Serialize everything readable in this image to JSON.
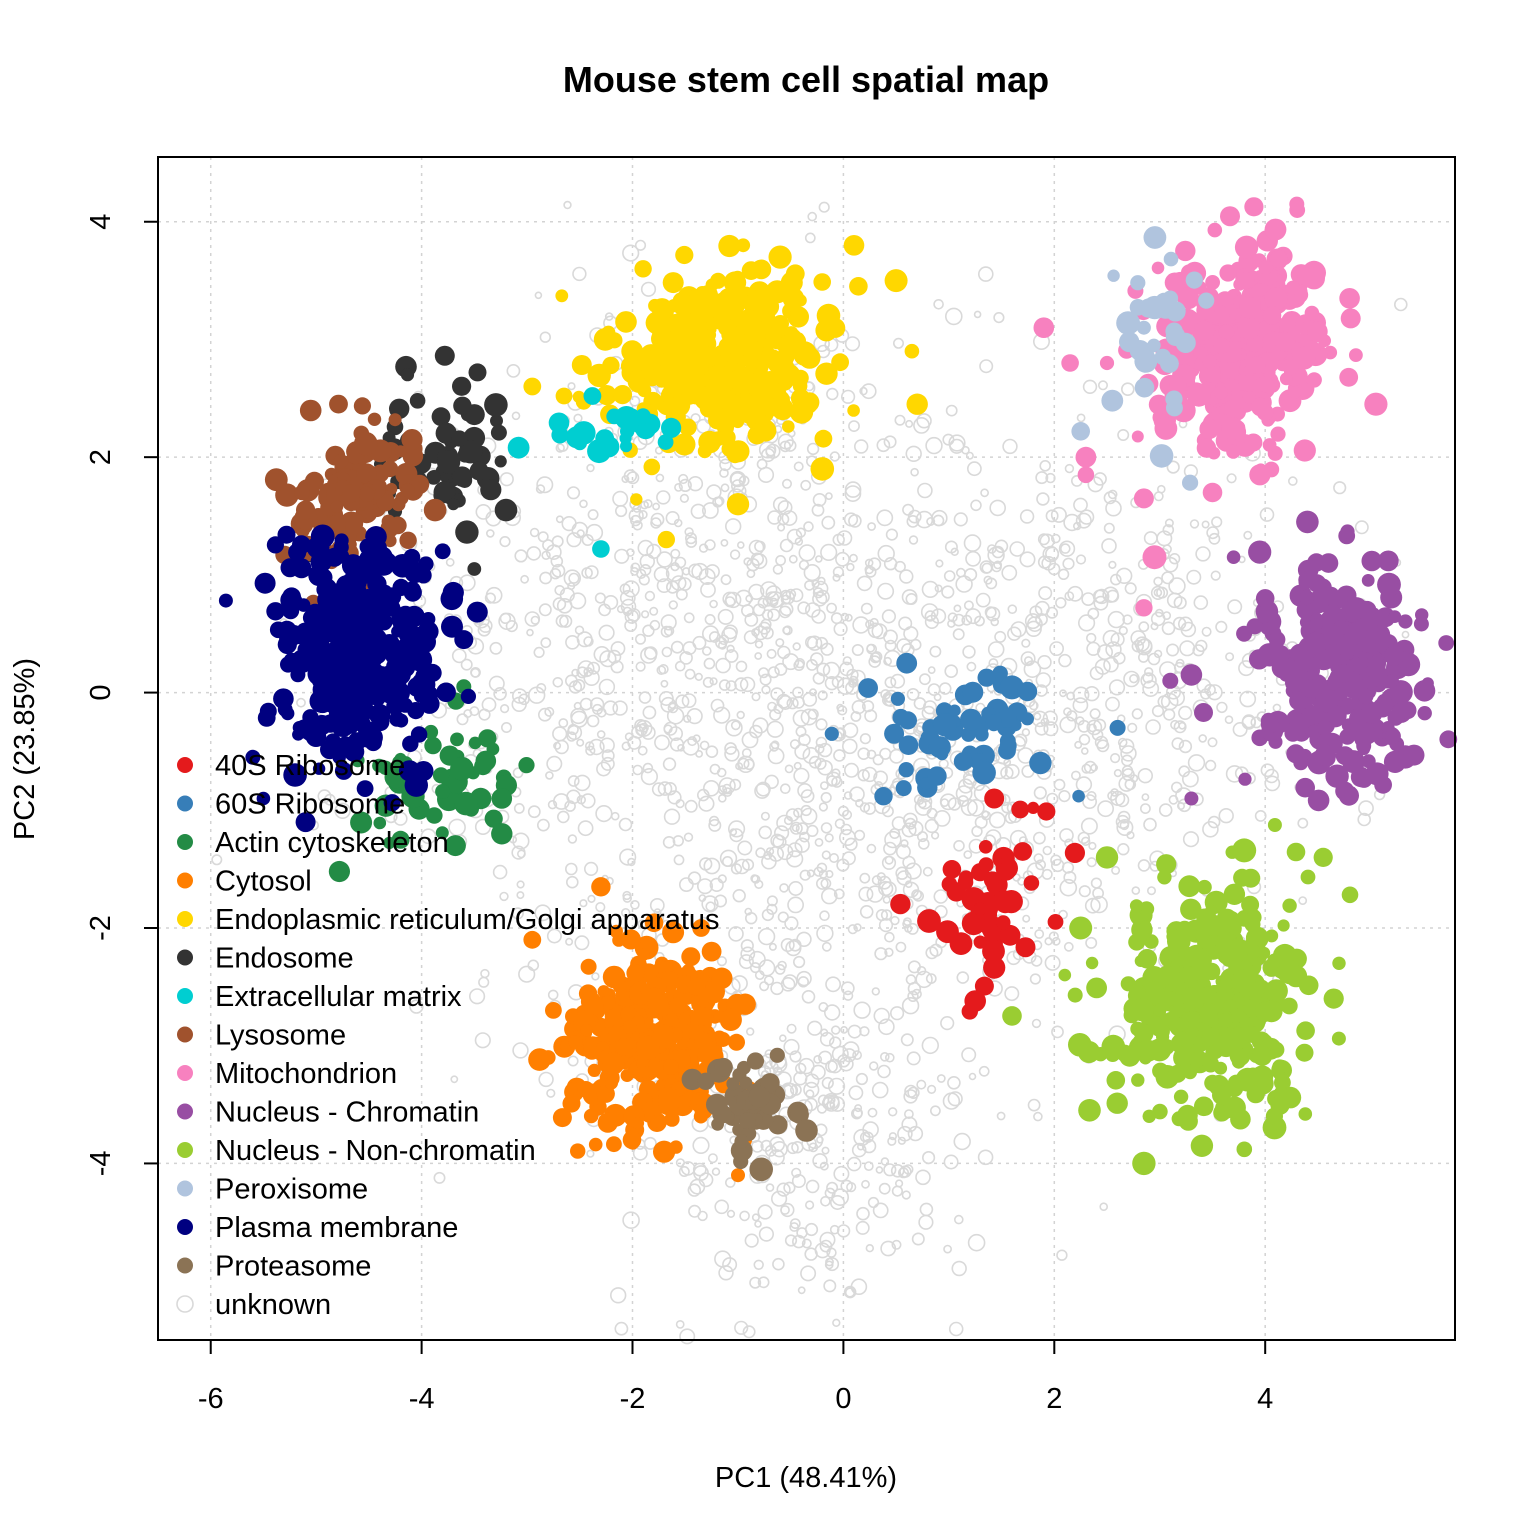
{
  "chart_data": {
    "type": "scatter",
    "title": "Mouse stem cell spatial map",
    "xlabel": "PC1 (48.41%)",
    "ylabel": "PC2 (23.85%)",
    "xlim": [
      -6.5,
      5.8
    ],
    "ylim": [
      -5.5,
      4.55
    ],
    "x_ticks": [
      -6,
      -4,
      -2,
      0,
      2,
      4
    ],
    "x_tick_labels": [
      "-6",
      "-4",
      "-2",
      "0",
      "2",
      "4"
    ],
    "y_ticks": [
      -4,
      -2,
      0,
      2,
      4
    ],
    "y_tick_labels": [
      "-4",
      "-2",
      "0",
      "2",
      "4"
    ],
    "grid": true,
    "legend_position": "bottom-left",
    "series": [
      {
        "name": "unknown",
        "color": "#d9d9d9",
        "style": "open",
        "clusters": [
          {
            "cx": -0.4,
            "cy": -0.8,
            "sx": 1.6,
            "sy": 1.5,
            "n": 700
          },
          {
            "cx": 1.6,
            "cy": -0.3,
            "sx": 1.3,
            "sy": 1.2,
            "n": 380
          },
          {
            "cx": -2.4,
            "cy": 0.6,
            "sx": 1.1,
            "sy": 1.3,
            "n": 300
          },
          {
            "cx": -0.3,
            "cy": -3.8,
            "sx": 0.7,
            "sy": 0.8,
            "n": 260
          },
          {
            "cx": 3.0,
            "cy": 0.2,
            "sx": 0.9,
            "sy": 1.1,
            "n": 200
          },
          {
            "cx": -0.6,
            "cy": 1.6,
            "sx": 0.9,
            "sy": 0.8,
            "n": 160
          }
        ]
      },
      {
        "name": "40S Ribosome",
        "color": "#e41a1c",
        "clusters": [
          {
            "cx": 1.4,
            "cy": -1.75,
            "sx": 0.28,
            "sy": 0.35,
            "n": 45
          }
        ],
        "points": [
          [
            1.43,
            -0.9
          ],
          [
            1.8,
            -0.98
          ],
          [
            1.25,
            -2.62
          ],
          [
            1.7,
            -1.35
          ]
        ]
      },
      {
        "name": "60S Ribosome",
        "color": "#377eb8",
        "clusters": [
          {
            "cx": 1.15,
            "cy": -0.35,
            "sx": 0.4,
            "sy": 0.28,
            "n": 55
          }
        ],
        "points": [
          [
            0.6,
            0.25
          ],
          [
            2.23,
            -0.88
          ],
          [
            -0.11,
            -0.35
          ],
          [
            2.6,
            -0.3
          ],
          [
            0.38,
            -0.88
          ]
        ]
      },
      {
        "name": "Actin cytoskeleton",
        "color": "#238b45",
        "clusters": [
          {
            "cx": -3.9,
            "cy": -0.8,
            "sx": 0.5,
            "sy": 0.35,
            "n": 45
          }
        ],
        "points": [
          [
            -3.68,
            -1.3
          ],
          [
            -3.24,
            -1.2
          ],
          [
            -4.78,
            -1.52
          ],
          [
            -3.6,
            0.05
          ],
          [
            -3.24,
            -0.9
          ]
        ]
      },
      {
        "name": "Cytosol",
        "color": "#ff7f00",
        "clusters": [
          {
            "cx": -1.8,
            "cy": -2.95,
            "sx": 0.38,
            "sy": 0.35,
            "n": 330
          }
        ],
        "points": [
          [
            -2.95,
            -2.1
          ],
          [
            -2.75,
            -2.7
          ],
          [
            -2.3,
            -1.65
          ],
          [
            -1.35,
            -2.0
          ],
          [
            -1.0,
            -4.1
          ],
          [
            -1.7,
            -3.9
          ],
          [
            -2.8,
            -3.1
          ],
          [
            -1.25,
            -2.2
          ]
        ]
      },
      {
        "name": "Endoplasmic reticulum/Golgi apparatus",
        "color": "#ffd700",
        "clusters": [
          {
            "cx": -1.2,
            "cy": 2.85,
            "sx": 0.5,
            "sy": 0.35,
            "n": 340
          }
        ],
        "points": [
          [
            -2.95,
            2.6
          ],
          [
            -2.65,
            2.52
          ],
          [
            -1.9,
            3.6
          ],
          [
            -0.6,
            3.7
          ],
          [
            0.1,
            3.8
          ],
          [
            0.5,
            3.5
          ],
          [
            0.65,
            2.9
          ],
          [
            0.7,
            2.45
          ],
          [
            -1.68,
            1.3
          ],
          [
            -1.0,
            1.6
          ],
          [
            -0.2,
            1.9
          ],
          [
            -0.95,
            3.8
          ]
        ]
      },
      {
        "name": "Endosome",
        "color": "#333333",
        "clusters": [
          {
            "cx": -3.8,
            "cy": 2.0,
            "sx": 0.35,
            "sy": 0.3,
            "n": 55
          }
        ],
        "points": [
          [
            -5.05,
            1.17
          ],
          [
            -3.5,
            1.05
          ],
          [
            -3.2,
            1.55
          ],
          [
            -3.47,
            2.72
          ],
          [
            -3.7,
            1.6
          ]
        ]
      },
      {
        "name": "Extracellular matrix",
        "color": "#00ced1",
        "clusters": [
          {
            "cx": -2.1,
            "cy": 2.2,
            "sx": 0.3,
            "sy": 0.08,
            "n": 18
          }
        ],
        "points": [
          [
            -3.08,
            2.08
          ],
          [
            -2.38,
            2.52
          ],
          [
            -2.3,
            1.22
          ],
          [
            -2.5,
            2.12
          ],
          [
            -1.9,
            2.35
          ]
        ]
      },
      {
        "name": "Lysosome",
        "color": "#a0522d",
        "clusters": [
          {
            "cx": -4.65,
            "cy": 1.7,
            "sx": 0.3,
            "sy": 0.28,
            "n": 110
          }
        ],
        "points": [
          [
            -5.3,
            1.17
          ],
          [
            -5.08,
            1.25
          ],
          [
            -4.2,
            2.05
          ],
          [
            -5.1,
            1.55
          ],
          [
            -4.3,
            1.9
          ]
        ]
      },
      {
        "name": "Mitochondrion",
        "color": "#f781bf",
        "clusters": [
          {
            "cx": 3.75,
            "cy": 2.9,
            "sx": 0.4,
            "sy": 0.4,
            "n": 330
          }
        ],
        "points": [
          [
            1.9,
            3.1
          ],
          [
            2.15,
            2.8
          ],
          [
            2.3,
            2.0
          ],
          [
            2.3,
            1.85
          ],
          [
            2.5,
            2.8
          ],
          [
            2.85,
            1.65
          ],
          [
            2.95,
            1.15
          ],
          [
            2.85,
            0.72
          ],
          [
            3.5,
            1.7
          ],
          [
            4.3,
            4.15
          ],
          [
            4.8,
            3.35
          ],
          [
            5.05,
            2.45
          ],
          [
            3.95,
            1.85
          ]
        ]
      },
      {
        "name": "Nucleus - Chromatin",
        "color": "#984ea3",
        "clusters": [
          {
            "cx": 4.7,
            "cy": 0.1,
            "sx": 0.35,
            "sy": 0.45,
            "n": 260
          }
        ],
        "points": [
          [
            3.1,
            0.1
          ],
          [
            3.3,
            0.15
          ],
          [
            3.7,
            1.15
          ],
          [
            4.0,
            0.8
          ],
          [
            4.6,
            1.1
          ],
          [
            4.4,
            1.45
          ],
          [
            5.0,
            1.1
          ],
          [
            5.35,
            -0.15
          ],
          [
            3.3,
            -0.9
          ],
          [
            3.8,
            0.5
          ]
        ]
      },
      {
        "name": "Nucleus - Non-chromatin",
        "color": "#9acd32",
        "clusters": [
          {
            "cx": 3.5,
            "cy": -2.6,
            "sx": 0.45,
            "sy": 0.5,
            "n": 330
          }
        ],
        "points": [
          [
            2.5,
            -1.4
          ],
          [
            2.9,
            -3.6
          ],
          [
            2.85,
            -4.0
          ],
          [
            4.7,
            -2.3
          ],
          [
            4.65,
            -2.6
          ],
          [
            4.15,
            -3.4
          ],
          [
            4.55,
            -1.4
          ],
          [
            2.1,
            -2.4
          ],
          [
            2.25,
            -2.0
          ],
          [
            3.4,
            -3.85
          ]
        ]
      },
      {
        "name": "Peroxisome",
        "color": "#b0c4de",
        "clusters": [
          {
            "cx": 3.0,
            "cy": 2.95,
            "sx": 0.22,
            "sy": 0.4,
            "n": 30
          }
        ],
        "points": [
          [
            2.25,
            2.22
          ],
          [
            2.55,
            2.48
          ],
          [
            3.0,
            1.98
          ],
          [
            2.85,
            3.1
          ],
          [
            3.1,
            3.35
          ]
        ]
      },
      {
        "name": "Plasma membrane",
        "color": "#000080",
        "clusters": [
          {
            "cx": -4.6,
            "cy": 0.35,
            "sx": 0.38,
            "sy": 0.45,
            "n": 330
          }
        ],
        "points": [
          [
            -5.6,
            -0.55
          ],
          [
            -5.5,
            -0.9
          ],
          [
            -5.1,
            -1.1
          ],
          [
            -3.7,
            0.85
          ],
          [
            -3.6,
            0.45
          ],
          [
            -3.8,
            1.2
          ],
          [
            -5.2,
            -0.7
          ]
        ]
      },
      {
        "name": "Proteasome",
        "color": "#8b7355",
        "clusters": [
          {
            "cx": -0.85,
            "cy": -3.5,
            "sx": 0.2,
            "sy": 0.18,
            "n": 45
          }
        ],
        "points": [
          [
            -0.78,
            -4.05
          ],
          [
            -0.35,
            -3.72
          ],
          [
            -1.2,
            -3.5
          ]
        ]
      }
    ]
  }
}
